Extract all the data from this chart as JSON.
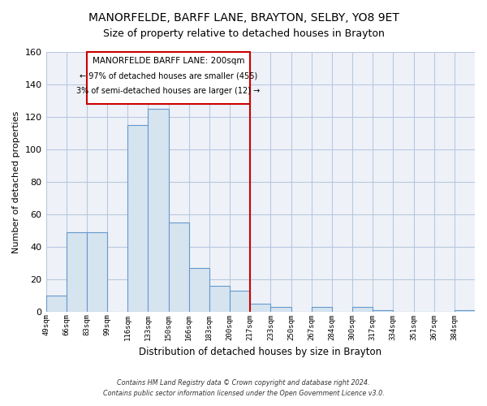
{
  "title": "MANORFELDE, BARFF LANE, BRAYTON, SELBY, YO8 9ET",
  "subtitle": "Size of property relative to detached houses in Brayton",
  "xlabel": "Distribution of detached houses by size in Brayton",
  "ylabel": "Number of detached properties",
  "footer_line1": "Contains HM Land Registry data © Crown copyright and database right 2024.",
  "footer_line2": "Contains public sector information licensed under the Open Government Licence v3.0.",
  "bin_labels": [
    "49sqm",
    "66sqm",
    "83sqm",
    "99sqm",
    "116sqm",
    "133sqm",
    "150sqm",
    "166sqm",
    "183sqm",
    "200sqm",
    "217sqm",
    "233sqm",
    "250sqm",
    "267sqm",
    "284sqm",
    "300sqm",
    "317sqm",
    "334sqm",
    "351sqm",
    "367sqm",
    "384sqm"
  ],
  "bin_values": [
    10,
    49,
    49,
    0,
    115,
    125,
    55,
    27,
    16,
    13,
    5,
    3,
    0,
    3,
    0,
    3,
    1,
    0,
    0,
    0,
    1
  ],
  "bar_color": "#d6e4f0",
  "bar_edge_color": "#6699cc",
  "vline_color": "#cc0000",
  "annotation_title": "MANORFELDE BARFF LANE: 200sqm",
  "annotation_line1": "← 97% of detached houses are smaller (455)",
  "annotation_line2": "3% of semi-detached houses are larger (12) →",
  "annotation_box_color": "#ffffff",
  "annotation_box_edge": "#cc0000",
  "ylim": [
    0,
    160
  ],
  "yticks": [
    0,
    20,
    40,
    60,
    80,
    100,
    120,
    140,
    160
  ],
  "plot_bg_color": "#eef2f8",
  "fig_bg_color": "#ffffff",
  "grid_color": "#b8c8e0",
  "title_fontsize": 10,
  "subtitle_fontsize": 9
}
